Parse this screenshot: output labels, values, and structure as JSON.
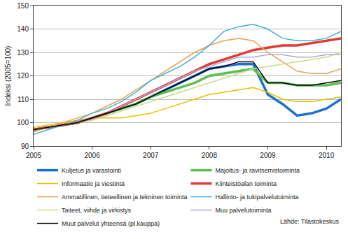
{
  "chart_data": {
    "type": "line",
    "y_label": "Indeksi (2005=100)",
    "source": "Lähde: Tilastokeskus",
    "x": [
      2005,
      2005.25,
      2005.5,
      2005.75,
      2006,
      2006.25,
      2006.5,
      2006.75,
      2007,
      2007.25,
      2007.5,
      2007.75,
      2008,
      2008.25,
      2008.5,
      2008.75,
      2009,
      2009.25,
      2009.5,
      2009.75,
      2010,
      2010.25
    ],
    "xlim": [
      2005,
      2010.25
    ],
    "xticks": [
      2005,
      2006,
      2007,
      2008,
      2009,
      2010
    ],
    "ylim": [
      90,
      150
    ],
    "yticks": [
      90,
      100,
      110,
      120,
      130,
      140,
      150
    ],
    "grid": "y",
    "legend": "bottom",
    "series": [
      {
        "name": "Kuljetus ja varastointi",
        "color": "#1f6fd0",
        "line_style": "thick",
        "values": [
          97,
          98,
          99,
          100,
          102,
          104,
          106,
          108,
          111,
          114,
          117,
          120,
          123,
          124,
          125,
          125,
          112,
          108,
          103,
          104,
          106,
          110
        ]
      },
      {
        "name": "Majoitus- ja ravitsemistoiminta",
        "color": "#5cc050",
        "line_style": "thick",
        "values": [
          97,
          98,
          99,
          100,
          102,
          104,
          106,
          108,
          111,
          113,
          115,
          117,
          120,
          121,
          122,
          123,
          117,
          117,
          116,
          116,
          116,
          117
        ]
      },
      {
        "name": "Informaatio ja viestintä",
        "color": "#e8c000",
        "line_style": "solid",
        "values": [
          98,
          99,
          100,
          101,
          102,
          102,
          102,
          103,
          104,
          106,
          108,
          110,
          112,
          113,
          114,
          115,
          113,
          110,
          109,
          109,
          110,
          111
        ]
      },
      {
        "name": "Kiinteistöalan toiminta",
        "color": "#e03c31",
        "line_style": "thick",
        "values": [
          97,
          98,
          99,
          100,
          102,
          104,
          107,
          110,
          113,
          116,
          119,
          122,
          125,
          127,
          129,
          131,
          132,
          133,
          133,
          134,
          135,
          136
        ]
      },
      {
        "name": "Ammatillinen, tieteellinen ja tekninen toiminta",
        "color": "#f0a050",
        "line_style": "solid",
        "values": [
          96,
          98,
          100,
          102,
          104,
          107,
          110,
          114,
          118,
          122,
          126,
          130,
          133,
          135,
          136,
          135,
          130,
          126,
          122,
          121,
          121,
          123
        ]
      },
      {
        "name": "Hallinto- ja tukipalvelutoiminta",
        "color": "#40b0e0",
        "line_style": "solid",
        "values": [
          95,
          97,
          99,
          101,
          104,
          106,
          109,
          113,
          118,
          121,
          124,
          128,
          133,
          139,
          141,
          142,
          140,
          136,
          135,
          135,
          136,
          139
        ]
      },
      {
        "name": "Taiteet, viihde ja virkistys",
        "color": "#c8dc8c",
        "line_style": "solid",
        "values": [
          97,
          98,
          99,
          100,
          101,
          103,
          105,
          107,
          109,
          111,
          113,
          115,
          117,
          119,
          121,
          123,
          124,
          125,
          126,
          127,
          128,
          130
        ]
      },
      {
        "name": "Muu palvelutoiminta",
        "color": "#b0a8d8",
        "line_style": "solid",
        "values": [
          97,
          98,
          99,
          100,
          102,
          104,
          107,
          110,
          113,
          116,
          119,
          122,
          124,
          126,
          128,
          128,
          129,
          129,
          128,
          128,
          129,
          129
        ]
      },
      {
        "name": "Muut palvelut yhteensä (pl.kauppa)",
        "color": "#000000",
        "line_style": "solid",
        "values": [
          97,
          98,
          99,
          100,
          102,
          104,
          106,
          108,
          111,
          114,
          117,
          120,
          123,
          124,
          126,
          126,
          117,
          117,
          116,
          116,
          117,
          118
        ]
      }
    ]
  }
}
